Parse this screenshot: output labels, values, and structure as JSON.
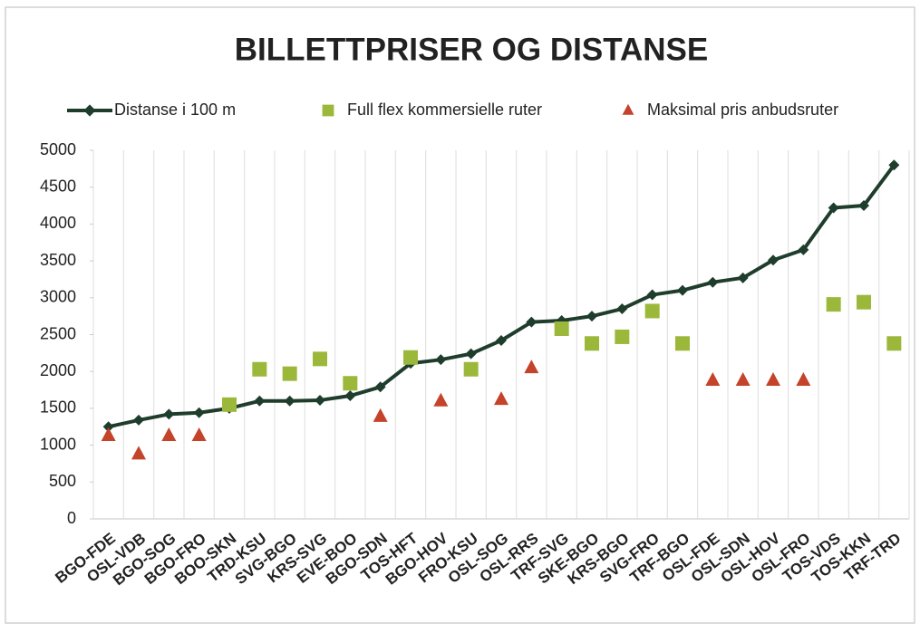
{
  "chart_data": {
    "type": "line",
    "title": "BILLETTPRISER OG DISTANSE",
    "categories": [
      "BGO-FDE",
      "OSL-VDB",
      "BGO-SOG",
      "BGO-FRO",
      "BOO-SKN",
      "TRD-KSU",
      "SVG-BGO",
      "KRS-SVG",
      "EVE-BOO",
      "BGO-SDN",
      "TOS-HFT",
      "BGO-HOV",
      "FRO-KSU",
      "OSL-SOG",
      "OSL-RRS",
      "TRF-SVG",
      "SKE-BGO",
      "KRS-BGO",
      "SVG-FRO",
      "TRF-BGO",
      "OSL-FDE",
      "OSL-SDN",
      "OSL-HOV",
      "OSL-FRO",
      "TOS-VDS",
      "TOS-KKN",
      "TRF-TRD"
    ],
    "series": [
      {
        "name": "Distanse i 100 m",
        "color": "#1f3d2c",
        "marker": "diamond",
        "values": [
          1250,
          1340,
          1420,
          1440,
          1500,
          1600,
          1600,
          1610,
          1670,
          1790,
          2110,
          2160,
          2240,
          2420,
          2670,
          2690,
          2750,
          2850,
          3040,
          3100,
          3210,
          3270,
          3510,
          3650,
          4220,
          4250,
          4800
        ]
      },
      {
        "name": "Full flex kommersielle ruter",
        "color": "#9cb83b",
        "marker": "square",
        "values": [
          null,
          null,
          null,
          null,
          1550,
          2030,
          1970,
          2170,
          1840,
          null,
          2190,
          null,
          2030,
          null,
          null,
          2580,
          2380,
          2470,
          2820,
          2380,
          null,
          null,
          null,
          null,
          2910,
          2940,
          2380
        ]
      },
      {
        "name": "Maksimal pris anbudsruter",
        "color": "#c4432a",
        "marker": "triangle",
        "values": [
          1130,
          880,
          1130,
          1130,
          null,
          null,
          null,
          null,
          null,
          1390,
          null,
          1600,
          null,
          1620,
          2050,
          null,
          null,
          null,
          null,
          null,
          1880,
          1880,
          1880,
          1880,
          null,
          null,
          null
        ]
      }
    ],
    "ylim": [
      0,
      5000
    ],
    "yticks": [
      0,
      500,
      1000,
      1500,
      2000,
      2500,
      3000,
      3500,
      4000,
      4500,
      5000
    ],
    "grid": true,
    "legend": "top"
  }
}
